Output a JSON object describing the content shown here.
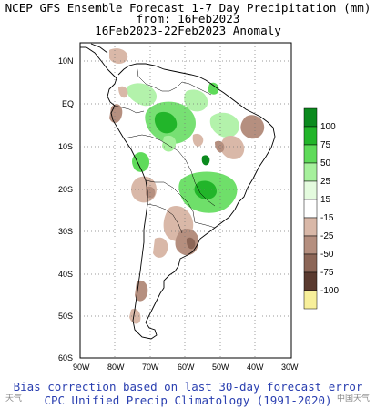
{
  "header": {
    "line1": "NCEP GFS Ensemble Forecast 1-7 Day Precipitation (mm)",
    "line2": "from: 16Feb2023",
    "line3": "16Feb2023-22Feb2023 Anomaly"
  },
  "axes": {
    "lat_labels": [
      "10N",
      "EQ",
      "10S",
      "20S",
      "30S",
      "40S",
      "50S",
      "60S"
    ],
    "lon_labels": [
      "90W",
      "80W",
      "70W",
      "60W",
      "50W",
      "40W",
      "30W"
    ]
  },
  "legend": {
    "labels": [
      "100",
      "75",
      "50",
      "25",
      "15",
      "-15",
      "-25",
      "-50",
      "-75",
      "-100"
    ],
    "colors": [
      "#0b8a1e",
      "#22b52a",
      "#5fdb5a",
      "#a6f09c",
      "#e4fbde",
      "#ffffff",
      "#d9b8a8",
      "#b58f7f",
      "#8c6657",
      "#5a3a2f",
      "#f7ef9a"
    ]
  },
  "footer": {
    "line1": "Bias correction based on last 30-day forecast error",
    "line2": "CPC Unified Precip Climatology (1991-2020)"
  },
  "watermark": {
    "left": "天气",
    "right": "中国天气"
  }
}
